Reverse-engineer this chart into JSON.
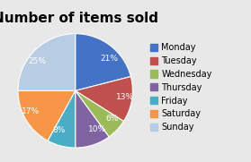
{
  "title": "Number of items sold",
  "labels": [
    "Monday",
    "Tuesday",
    "Wednesday",
    "Thursday",
    "Friday",
    "Saturday",
    "Sunday"
  ],
  "values": [
    21,
    13,
    6,
    10,
    8,
    17,
    25
  ],
  "colors": [
    "#4472C4",
    "#C0504D",
    "#9BBB59",
    "#8064A2",
    "#4BACC6",
    "#F79646",
    "#B8CCE4"
  ],
  "startangle": 90,
  "counterclock": false,
  "title_fontsize": 11,
  "legend_fontsize": 7,
  "label_fontsize": 6.5,
  "background_color": "#E8E8E8"
}
